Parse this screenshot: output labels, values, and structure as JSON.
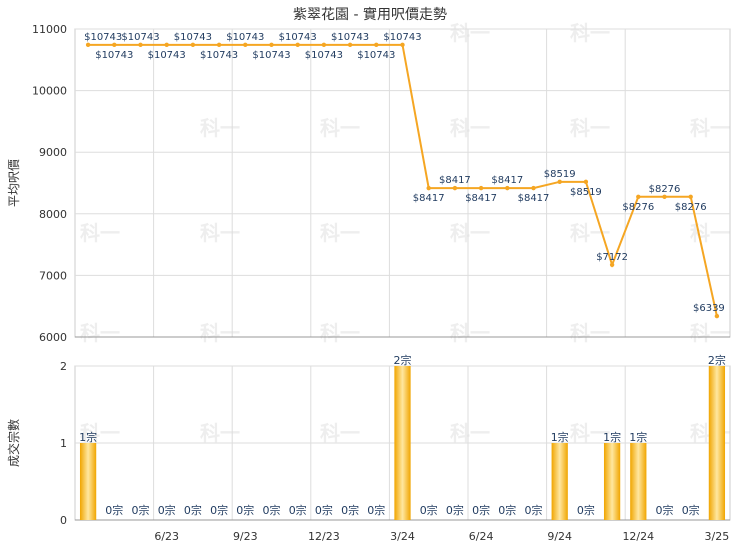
{
  "chart_data": [
    {
      "type": "line",
      "title": "紫翠花園 - 實用呎價走勢",
      "ylabel": "平均呎價",
      "ylim": [
        6000,
        11000
      ],
      "yticks": [
        "11000",
        "10000",
        "9000",
        "8000",
        "7000",
        "6000"
      ],
      "grid": true,
      "color": "#f5a623",
      "x": [
        "3/23",
        "4/23",
        "5/23",
        "6/23",
        "7/23",
        "8/23",
        "9/23",
        "10/23",
        "11/23",
        "12/23",
        "1/24",
        "2/24",
        "3/24",
        "4/24",
        "5/24",
        "6/24",
        "7/24",
        "8/24",
        "9/24",
        "10/24",
        "11/24",
        "12/24",
        "1/25",
        "2/25",
        "3/25"
      ],
      "values": [
        10743,
        10743,
        10743,
        10743,
        10743,
        10743,
        10743,
        10743,
        10743,
        10743,
        10743,
        10743,
        10743,
        8417,
        8417,
        8417,
        8417,
        8417,
        8519,
        8519,
        7172,
        8276,
        8276,
        8276,
        6339
      ],
      "labels": [
        "$10743",
        "$10743",
        "$10743",
        "$10743",
        "$10743",
        "$10743",
        "$10743",
        "$10743",
        "$10743",
        "$10743",
        "$10743",
        "$10743",
        "$10743",
        "$8417",
        "$8417",
        "$8417",
        "$8417",
        "$8417",
        "$8519",
        "$8519",
        "$7172",
        "$8276",
        "$8276",
        "$8276",
        "$6339"
      ]
    },
    {
      "type": "bar",
      "ylabel": "成交宗數",
      "ylim": [
        0,
        2
      ],
      "yticks": [
        "2",
        "1",
        "0"
      ],
      "xticks": [
        "6/23",
        "9/23",
        "12/23",
        "3/24",
        "6/24",
        "9/24",
        "12/24",
        "3/25"
      ],
      "grid": true,
      "color": "#f5a623",
      "values": [
        1,
        0,
        0,
        0,
        0,
        0,
        0,
        0,
        0,
        0,
        0,
        0,
        2,
        0,
        0,
        0,
        0,
        0,
        1,
        0,
        1,
        1,
        0,
        0,
        2
      ],
      "labels": [
        "1宗",
        "0宗",
        "0宗",
        "0宗",
        "0宗",
        "0宗",
        "0宗",
        "0宗",
        "0宗",
        "0宗",
        "0宗",
        "0宗",
        "2宗",
        "0宗",
        "0宗",
        "0宗",
        "0宗",
        "0宗",
        "1宗",
        "0宗",
        "1宗",
        "1宗",
        "0宗",
        "0宗",
        "2宗"
      ]
    }
  ],
  "watermark": "科一"
}
